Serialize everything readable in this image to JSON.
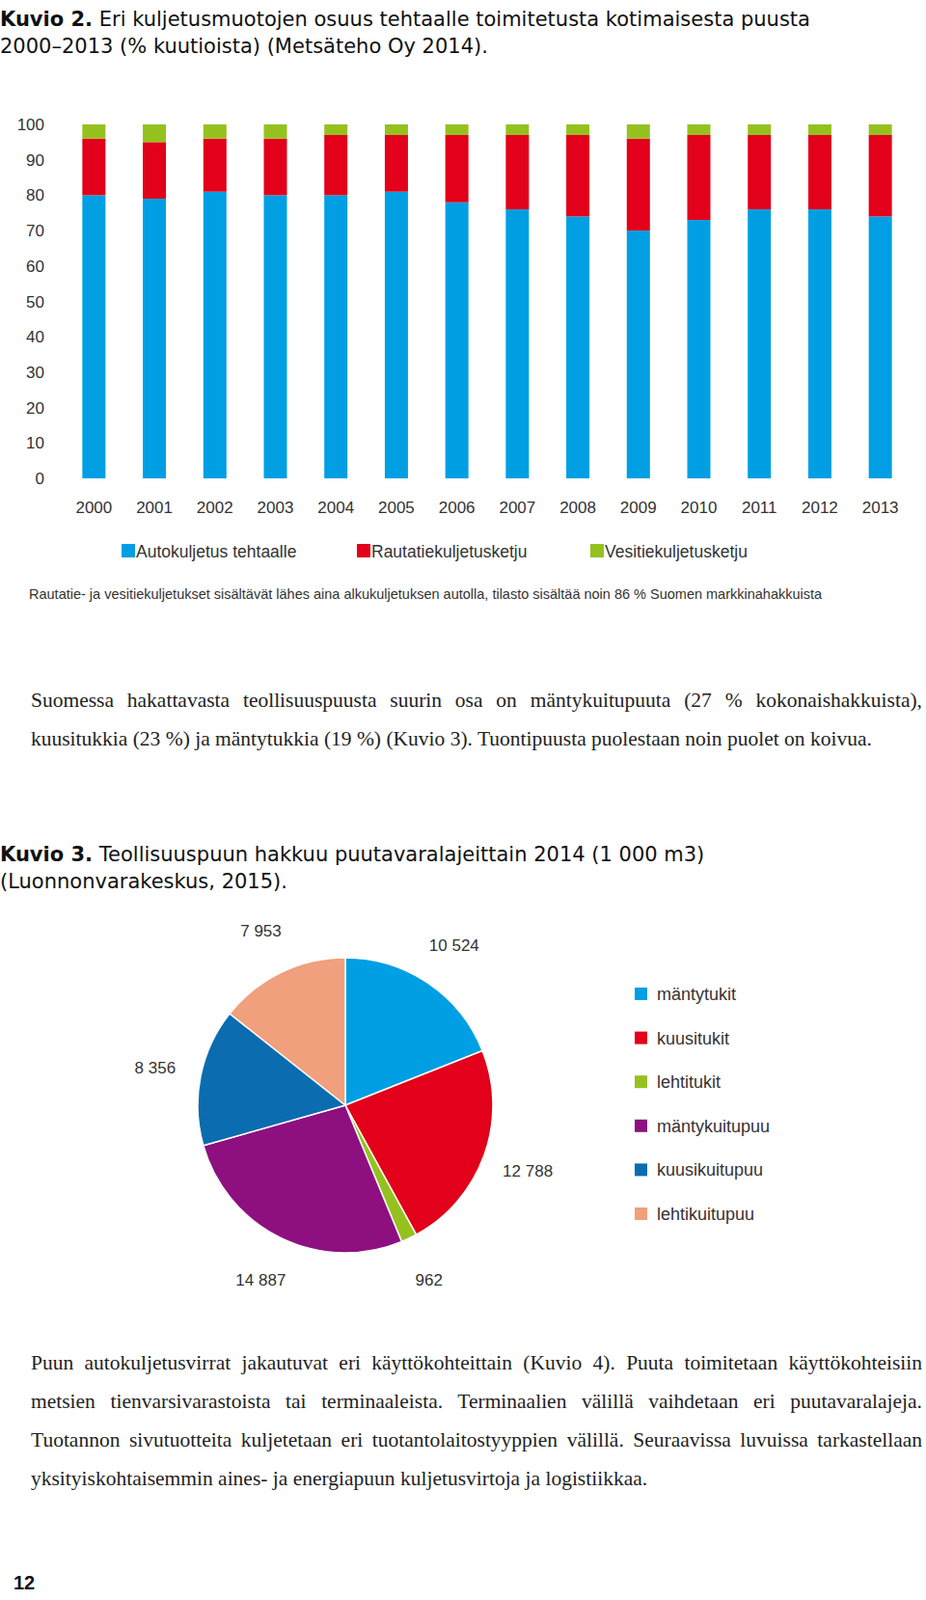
{
  "document": {
    "paragraphs": [
      "Suomessa hakattavasta teollisuuspuusta suurin osa on mäntykuitupuuta (27 % kokonaishakkuista), kuusitukkia (23 %) ja mäntytukkia (19 %) (Kuvio 3). Tuontipuusta puolestaan noin puolet on koivua.",
      "Puun autokuljetusvirrat jakautuvat eri käyttökohteittain (Kuvio 4). Puuta toimitetaan käyttökohteisiin metsien tienvarsivarastoista tai terminaaleista. Terminaalien välillä vaihdetaan eri puutavaralajeja. Tuotannon sivutuotteita kuljetetaan eri tuotantolaitostyyppien välillä. Seuraavissa luvuissa tarkastellaan yksityiskohtaisemmin aines- ja energiapuun kuljetusvirtoja ja logistiikkaa."
    ],
    "page_number": "12"
  },
  "chart_data": [
    {
      "type": "bar",
      "figure_label": "Kuvio 2.",
      "title": "Eri kuljetusmuotojen osuus tehtaalle toimitetusta kotimaisesta puusta 2000–2013 (% kuutioista) (Metsäteho Oy 2014).",
      "note": "Rautatie- ja vesitiekuljetukset sisältävät lähes aina alkukuljetuksen autolla, tilasto sisältää noin 86 % Suomen markkinahakkuista",
      "categories": [
        "2000",
        "2001",
        "2002",
        "2003",
        "2004",
        "2005",
        "2006",
        "2007",
        "2008",
        "2009",
        "2010",
        "2011",
        "2012",
        "2013"
      ],
      "series": [
        {
          "name": "Autokuljetus tehtaalle",
          "color": "#009fe3",
          "values": [
            80,
            79,
            81,
            80,
            80,
            81,
            78,
            76,
            74,
            70,
            73,
            76,
            76,
            74
          ]
        },
        {
          "name": "Rautatiekuljetusketju",
          "color": "#e2001a",
          "values": [
            16,
            16,
            15,
            16,
            17,
            16,
            19,
            21,
            23,
            26,
            24,
            21,
            21,
            23
          ]
        },
        {
          "name": "Vesitiekuljetusketju",
          "color": "#95c11f",
          "values": [
            4,
            5,
            4,
            4,
            3,
            3,
            3,
            3,
            3,
            4,
            3,
            3,
            3,
            3
          ]
        }
      ],
      "stacked": true,
      "ylim": [
        0,
        100
      ],
      "yticks": [
        0,
        10,
        20,
        30,
        40,
        50,
        60,
        70,
        80,
        90,
        100
      ],
      "grid": false,
      "legend": "bottom"
    },
    {
      "type": "pie",
      "figure_label": "Kuvio 3.",
      "title": "Teollisuuspuun hakkuu puutavaralajeittain 2014 (1 000 m3) (Luonnonvarakeskus, 2015).",
      "categories": [
        "mäntytukit",
        "kuusitukit",
        "lehtitukit",
        "mäntykuitupuu",
        "kuusikuitupuu",
        "lehtikuitupuu"
      ],
      "values": [
        10524,
        12788,
        962,
        14887,
        8356,
        7953
      ],
      "value_labels": [
        "10 524",
        "12 788",
        "962",
        "14 887",
        "8 356",
        "7 953"
      ],
      "colors": [
        "#009fe3",
        "#e2001a",
        "#95c11f",
        "#8e1080",
        "#0b6cb0",
        "#f0a07c"
      ],
      "data_labels": true,
      "legend": "right"
    }
  ]
}
